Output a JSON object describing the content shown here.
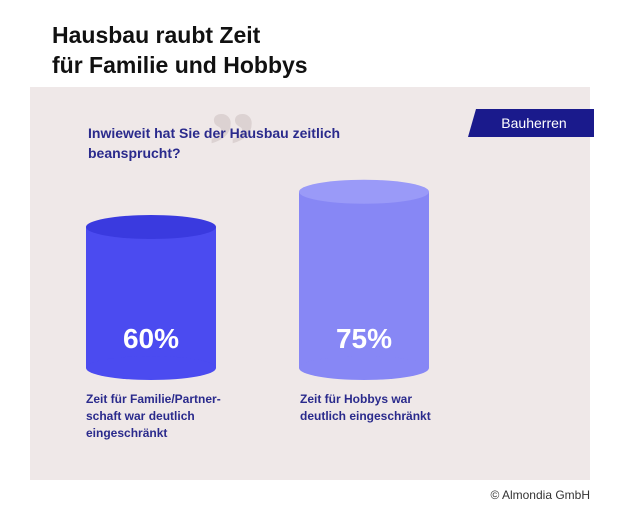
{
  "header": {
    "title_line1": "Hausbau raubt Zeit",
    "title_line2": "für Familie und Hobbys"
  },
  "question": {
    "line1": "Inwieweit hat Sie der Hausbau zeitlich",
    "line2": "beansprucht?"
  },
  "badge": "Bauherren",
  "copyright": "© Almondia GmbH",
  "colors": {
    "bar1": "#4b4bf0",
    "bar2": "#8787f5",
    "panel": "#efe8e8",
    "badge": "#1a1a8c"
  },
  "chart_data": {
    "type": "bar",
    "categories": [
      "Zeit für Familie/Partnerschaft war deutlich eingeschränkt",
      "Zeit für Hobbys war deutlich eingeschränkt"
    ],
    "values": [
      60,
      75
    ],
    "value_labels": [
      "60%",
      "75%"
    ],
    "category_labels": [
      [
        "Zeit für Familie/Partner-",
        "schaft war deutlich",
        "eingeschränkt"
      ],
      [
        "Zeit für Hobbys war",
        "deutlich eingeschränkt"
      ]
    ],
    "unit": "%",
    "ylim": [
      0,
      100
    ],
    "grid": false,
    "legend": "none"
  }
}
